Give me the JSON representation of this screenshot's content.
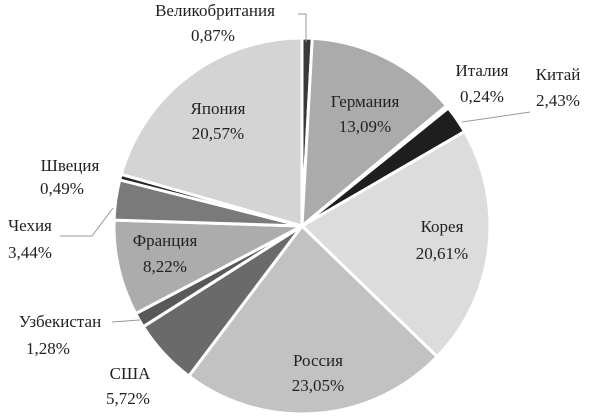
{
  "chart_data": {
    "type": "pie",
    "categories": [
      "Великобритания",
      "Германия",
      "Италия",
      "Китай",
      "Корея",
      "Россия",
      "США",
      "Узбекистан",
      "Франция",
      "Чехия",
      "Швеция",
      "Япония"
    ],
    "values": [
      0.87,
      13.09,
      0.24,
      2.43,
      20.61,
      23.05,
      5.72,
      1.28,
      8.22,
      3.44,
      0.49,
      20.57
    ],
    "value_labels": [
      "0,87%",
      "13,09%",
      "0,24%",
      "2,43%",
      "20,61%",
      "23,05%",
      "5,72%",
      "1,28%",
      "8,22%",
      "3,44%",
      "0,49%",
      "20,57%"
    ],
    "colors": [
      "#3a3a3a",
      "#ababab",
      "#f2f2f2",
      "#1e1e1e",
      "#dcdcdc",
      "#c2c2c2",
      "#6a6a6a",
      "#585858",
      "#acacac",
      "#7a7a7a",
      "#262626",
      "#d4d4d4"
    ]
  }
}
